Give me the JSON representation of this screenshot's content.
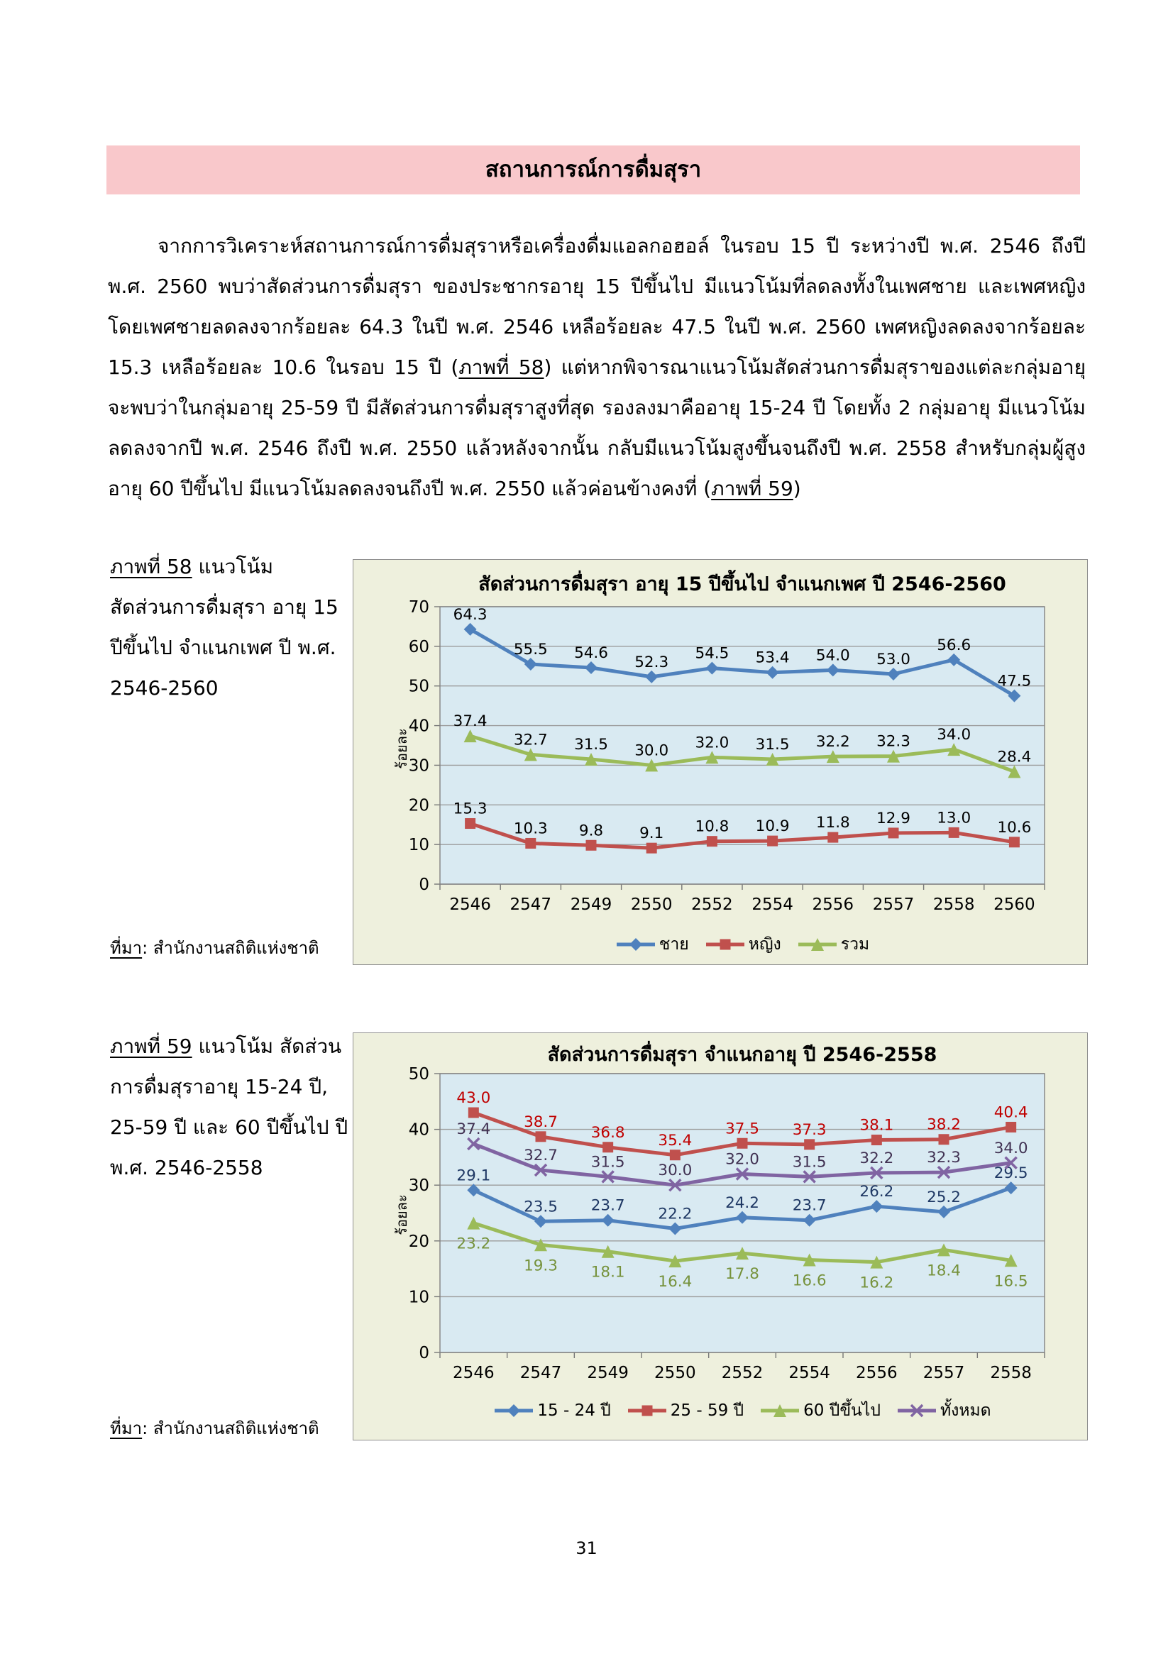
{
  "banner": {
    "title": "สถานการณ์การดื่มสุรา",
    "bg": "#f9c8cb"
  },
  "paragraph": {
    "part1": "จากการวิเคราะห์สถานการณ์การดื่มสุราหรือเครื่องดื่มแอลกอฮอล์ ในรอบ 15 ปี ระหว่างปี พ.ศ. 2546 ถึงปี พ.ศ. 2560 พบว่าสัดส่วนการดื่มสุรา ของประชากรอายุ 15 ปีขึ้นไป มีแนวโน้มที่ลดลงทั้งในเพศชาย และเพศหญิง โดยเพศชายลดลงจากร้อยละ 64.3 ในปี พ.ศ. 2546 เหลือร้อยละ 47.5 ในปี พ.ศ. 2560 เพศหญิงลดลงจากร้อยละ 15.3 เหลือร้อยละ 10.6 ในรอบ 15 ปี (",
    "fig58_ref": "ภาพที่ 58",
    "part2": ") แต่หากพิจารณาแนวโน้มสัดส่วนการดื่มสุราของแต่ละกลุ่มอายุ จะพบว่าในกลุ่มอายุ 25-59 ปี มีสัดส่วนการดื่มสุราสูงที่สุด รองลงมาคืออายุ 15-24 ปี โดยทั้ง 2 กลุ่มอายุ มีแนวโน้มลดลงจากปี พ.ศ. 2546 ถึงปี พ.ศ. 2550 แล้วหลังจากนั้น กลับมีแนวโน้มสูงขึ้นจนถึงปี พ.ศ. 2558 สำหรับกลุ่มผู้สูงอายุ 60 ปีขึ้นไป มีแนวโน้มลดลงจนถึงปี พ.ศ. 2550 แล้วค่อนข้างคงที่ (",
    "fig59_ref": "ภาพที่ 59",
    "part3": ")"
  },
  "figure58_caption": {
    "ref": "ภาพที่ 58",
    "rest": " แนวโน้ม สัดส่วนการดื่มสุรา อายุ 15 ปีขึ้นไป จำแนกเพศ ปี พ.ศ. 2546-2560"
  },
  "figure59_caption": {
    "ref": "ภาพที่ 59",
    "rest": " แนวโน้ม สัดส่วนการดื่มสุราอายุ 15-24 ปี, 25-59 ปี และ 60 ปีขึ้นไป ปี พ.ศ. 2546-2558"
  },
  "source58": {
    "label": "ที่มา",
    "rest": ": สำนักงานสถิติแห่งชาติ"
  },
  "source59": {
    "label": "ที่มา",
    "rest": ": สำนักงานสถิติแห่งชาติ"
  },
  "page_number": "31",
  "chart_data": [
    {
      "type": "line",
      "title": "สัดส่วนการดื่มสุรา อายุ 15 ปีขึ้นไป จำแนกเพศ ปี 2546-2560",
      "xlabel": "",
      "ylabel": "ร้อยละ",
      "ylim": [
        0,
        70
      ],
      "ytick_step": 10,
      "grid": true,
      "legend_position": "bottom",
      "plot_bg": "#d9eaf2",
      "frame_bg": "#eef0dd",
      "categories": [
        "2546",
        "2547",
        "2549",
        "2550",
        "2552",
        "2554",
        "2556",
        "2557",
        "2558",
        "2560"
      ],
      "series": [
        {
          "name": "ชาย",
          "marker": "diamond",
          "color": "#4f81bd",
          "label_color": "#000000",
          "label_side": "above",
          "values": [
            64.3,
            55.5,
            54.6,
            52.3,
            54.5,
            53.4,
            54.0,
            53.0,
            56.6,
            47.5
          ]
        },
        {
          "name": "หญิง",
          "marker": "square",
          "color": "#c0504d",
          "label_color": "#000000",
          "label_side": "above",
          "values": [
            15.3,
            10.3,
            9.8,
            9.1,
            10.8,
            10.9,
            11.8,
            12.9,
            13.0,
            10.6
          ]
        },
        {
          "name": "รวม",
          "marker": "triangle",
          "color": "#9bbb59",
          "label_color": "#000000",
          "label_side": "above",
          "values": [
            37.4,
            32.7,
            31.5,
            30.0,
            32.0,
            31.5,
            32.2,
            32.3,
            34.0,
            28.4
          ]
        }
      ]
    },
    {
      "type": "line",
      "title": "สัดส่วนการดื่มสุรา จำแนกอายุ ปี 2546-2558",
      "xlabel": "",
      "ylabel": "ร้อยละ",
      "ylim": [
        0,
        50
      ],
      "ytick_step": 5,
      "grid": true,
      "legend_position": "bottom",
      "plot_bg": "#d9eaf2",
      "frame_bg": "#eef0dd",
      "categories": [
        "2546",
        "2547",
        "2549",
        "2550",
        "2552",
        "2554",
        "2556",
        "2557",
        "2558"
      ],
      "series": [
        {
          "name": "15 - 24 ปี",
          "marker": "diamond",
          "color": "#4f81bd",
          "label_color": "#1f3864",
          "label_side": "above",
          "values": [
            29.1,
            23.5,
            23.7,
            22.2,
            24.2,
            23.7,
            26.2,
            25.2,
            29.5
          ]
        },
        {
          "name": "25 - 59 ปี",
          "marker": "square",
          "color": "#c0504d",
          "label_color": "#c00000",
          "label_side": "above",
          "values": [
            43.0,
            38.7,
            36.8,
            35.4,
            37.5,
            37.3,
            38.1,
            38.2,
            40.4
          ]
        },
        {
          "name": "60 ปีขึ้นไป",
          "marker": "triangle",
          "color": "#9bbb59",
          "label_color": "#76923c",
          "label_side": "below",
          "values": [
            23.2,
            19.3,
            18.1,
            16.4,
            17.8,
            16.6,
            16.2,
            18.4,
            16.5
          ]
        },
        {
          "name": "ทั้งหมด",
          "marker": "x",
          "color": "#8064a2",
          "label_color": "#403152",
          "label_side": "above",
          "values": [
            37.4,
            32.7,
            31.5,
            30.0,
            32.0,
            31.5,
            32.2,
            32.3,
            34.0
          ]
        }
      ]
    }
  ]
}
